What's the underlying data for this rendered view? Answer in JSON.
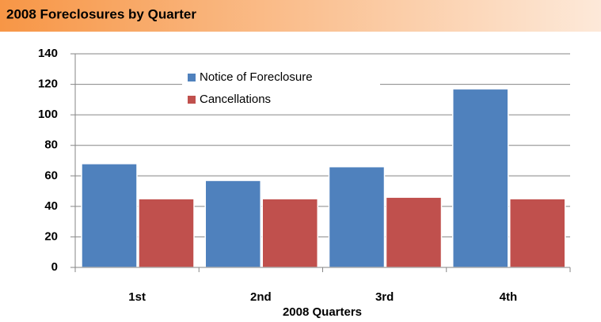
{
  "chart_data": {
    "type": "bar",
    "title": "2008 Foreclosures by Quarter",
    "x_label": "2008 Quarters",
    "categories": [
      "1st",
      "2nd",
      "3rd",
      "4th"
    ],
    "series": [
      {
        "name": "Notice of Foreclosure",
        "color": "#4f81bd",
        "values": [
          68,
          57,
          66,
          117
        ]
      },
      {
        "name": "Cancellations",
        "color": "#c0504d",
        "values": [
          45,
          45,
          46,
          45
        ]
      }
    ],
    "ylim": [
      0,
      140
    ],
    "yticks": [
      0,
      20,
      40,
      60,
      80,
      100,
      120,
      140
    ],
    "grid": true
  }
}
